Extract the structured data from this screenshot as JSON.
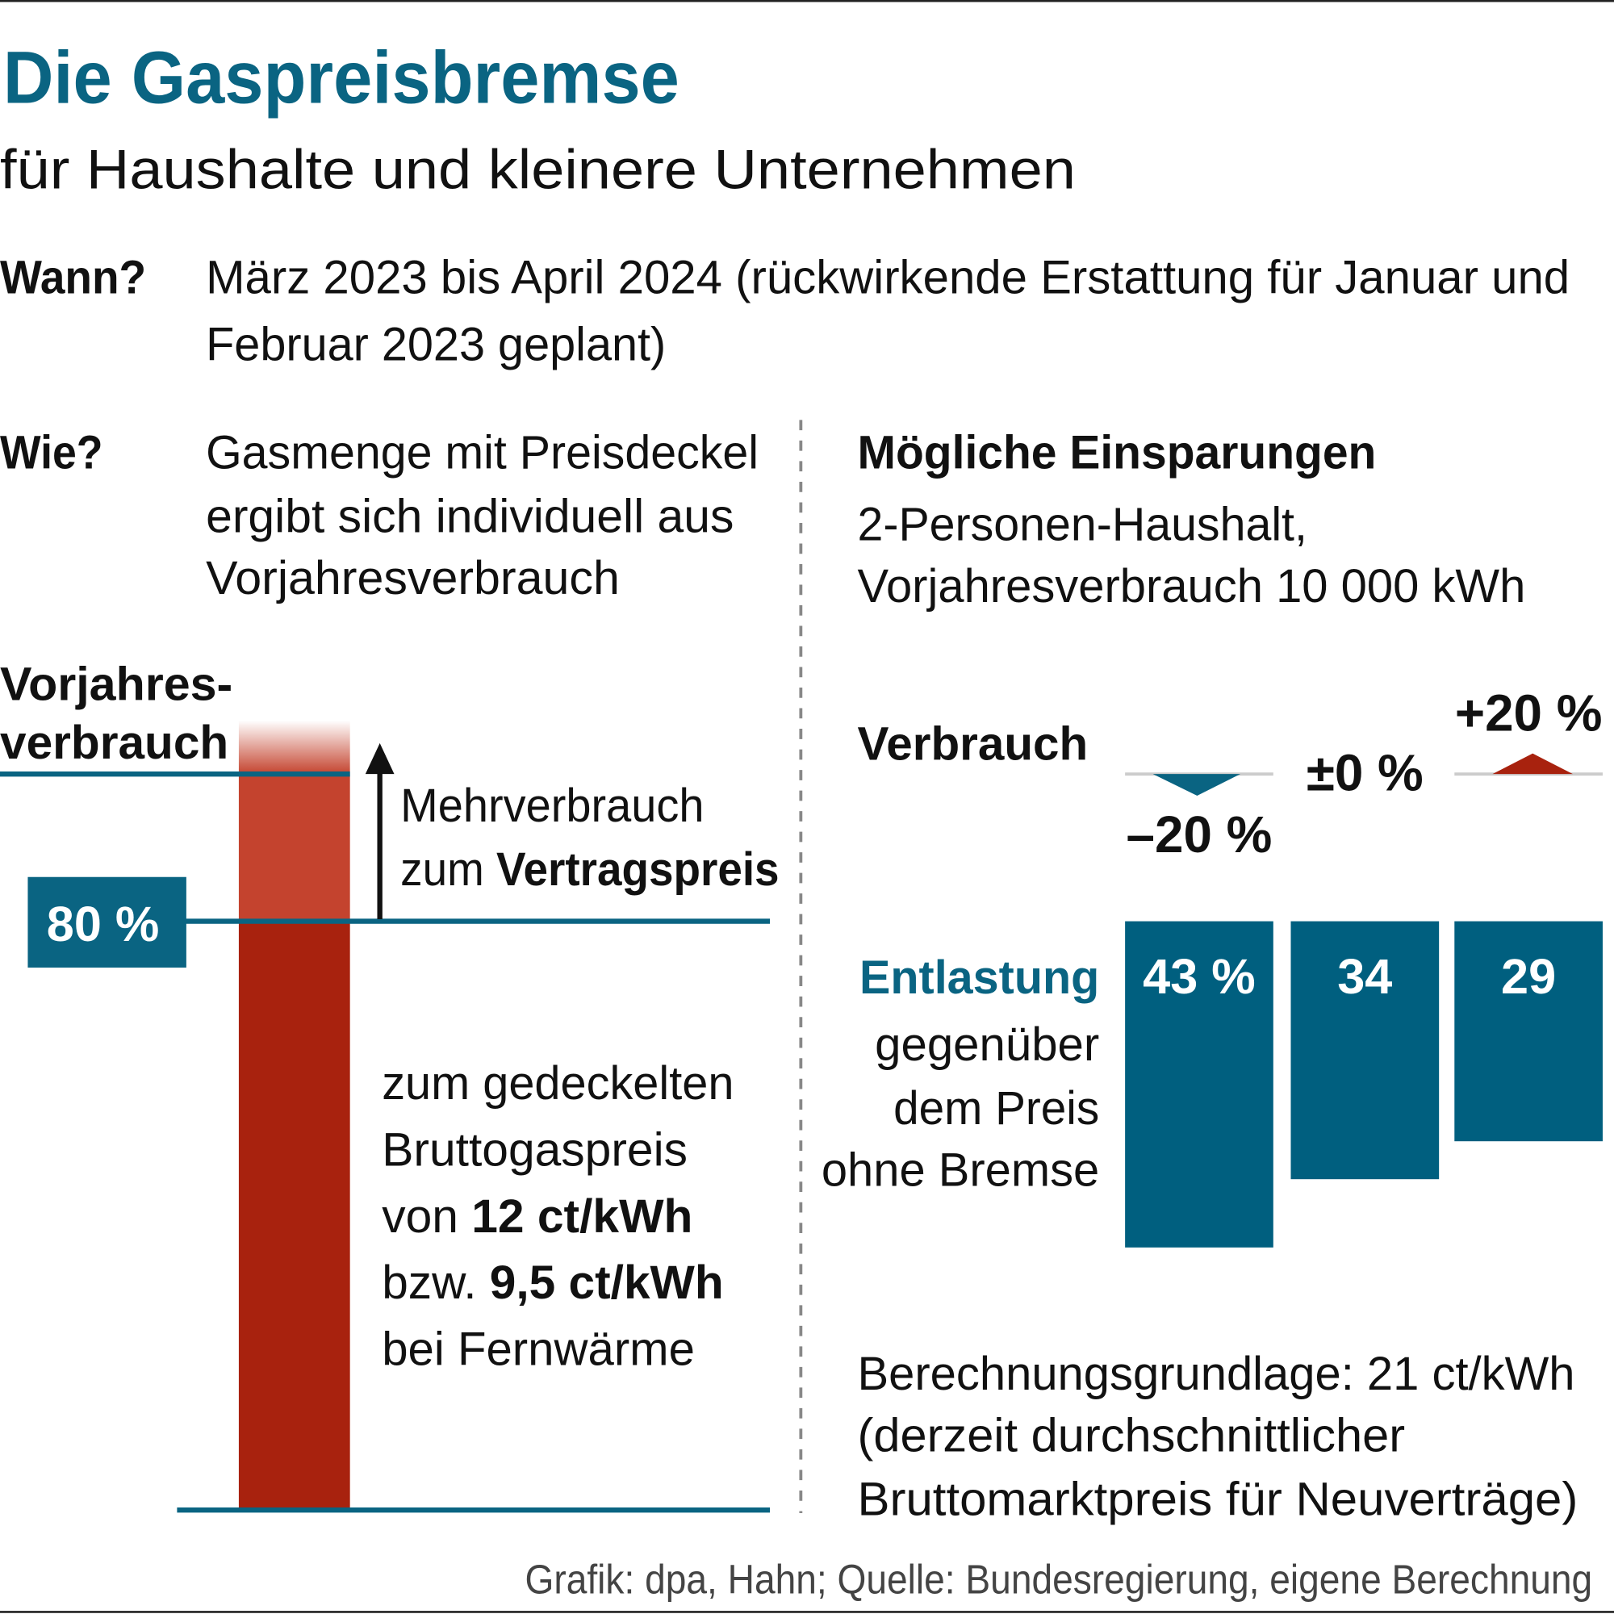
{
  "header": {
    "title": "Die Gaspreisbremse",
    "subtitle": "für Haushalte und kleinere Unternehmen"
  },
  "when": {
    "label": "Wann?",
    "lines": [
      "März 2023 bis April 2024 (rückwirkende Erstattung für Januar und",
      "Februar 2023 geplant)"
    ]
  },
  "how": {
    "label": "Wie?",
    "lines": [
      "Gasmenge mit Preisdeckel",
      "ergibt sich individuell aus",
      "Vorjahresverbrauch"
    ]
  },
  "diagram": {
    "base_label": [
      "Vorjahres-",
      "verbrauch"
    ],
    "cap_label": "80 %",
    "extra_text": [
      "Mehrverbrauch",
      [
        "zum ",
        "Vertragspreis"
      ]
    ],
    "capped_text": [
      [
        "zum gedeckelten"
      ],
      [
        "Bruttogaspreis"
      ],
      [
        "von ",
        "12 ct/kWh"
      ],
      [
        "bzw. ",
        "9,5 ct/kWh"
      ],
      [
        "bei Fernwärme"
      ]
    ]
  },
  "chart_data": {
    "type": "bar",
    "title": "Mögliche Einsparungen",
    "subtitle": [
      "2-Personen-Haushalt,",
      "Vorjahresverbrauch 10 000 kWh"
    ],
    "x_label": "Verbrauch",
    "y_label": [
      "Entlastung",
      "gegenüber",
      "dem Preis",
      "ohne Bremse"
    ],
    "categories": [
      "–20 %",
      "±0 %",
      "+20 %"
    ],
    "values": [
      43,
      34,
      29
    ],
    "value_labels": [
      "43 %",
      "34",
      "29"
    ],
    "color": "#005f7f",
    "note": [
      "Berechnungsgrundlage: 21 ct/kWh",
      "(derzeit durchschnittlicher",
      "Bruttomarktpreis für Neuverträge)"
    ]
  },
  "source": "Grafik: dpa, Hahn; Quelle: Bundesregierung, eigene Berechnung"
}
